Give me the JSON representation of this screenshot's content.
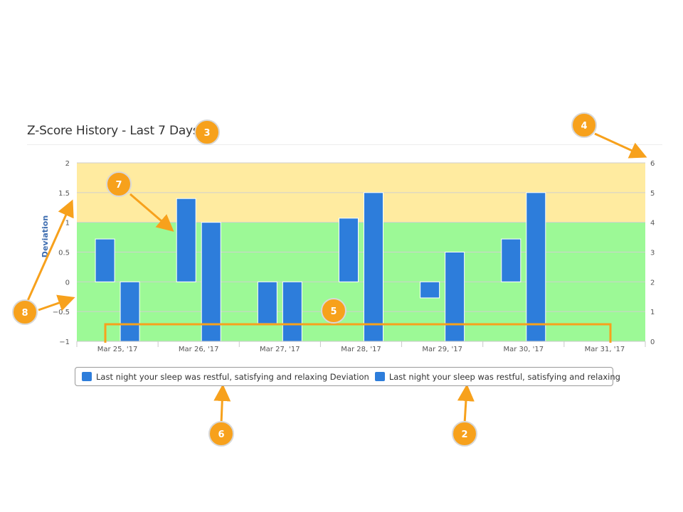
{
  "header": {
    "title": "Z-Score History - Last 7 Days"
  },
  "chart_data": {
    "type": "bar",
    "categories": [
      "Mar 25, '17",
      "Mar 26, '17",
      "Mar 27, '17",
      "Mar 28, '17",
      "Mar 29, '17",
      "Mar 30, '17",
      "Mar 31, '17"
    ],
    "ylabel": "Deviation",
    "ylim": [
      -1,
      2
    ],
    "yticks": [
      "2",
      "1.5",
      "1",
      "0.5",
      "0",
      "−0.5",
      "−1"
    ],
    "y2lim": [
      0,
      6
    ],
    "y2ticks": [
      "6",
      "5",
      "4",
      "3",
      "2",
      "1",
      "0"
    ],
    "bands": [
      {
        "from": 1,
        "to": 2,
        "color": "#ffeba0"
      },
      {
        "from": -1,
        "to": 1,
        "color": "#9cf996"
      }
    ],
    "series": [
      {
        "name": "Last night your sleep was restful, satisfying and relaxing Deviation",
        "axis": "left",
        "color": "#2d7ddb",
        "values": [
          0.72,
          1.4,
          -0.7,
          1.07,
          -0.27,
          0.72,
          null
        ]
      },
      {
        "name": "Last night your sleep was restful, satisfying and relaxing",
        "axis": "right",
        "color": "#2d7ddb",
        "values": [
          2,
          4,
          2,
          5,
          3,
          5,
          null
        ]
      }
    ],
    "annotations": [
      {
        "label": "2",
        "color": "#f7a11c"
      },
      {
        "label": "3",
        "color": "#f7a11c"
      },
      {
        "label": "4",
        "color": "#f7a11c"
      },
      {
        "label": "5",
        "color": "#f7a11c"
      },
      {
        "label": "6",
        "color": "#f7a11c"
      },
      {
        "label": "7",
        "color": "#f7a11c"
      },
      {
        "label": "8",
        "color": "#f7a11c"
      }
    ]
  }
}
